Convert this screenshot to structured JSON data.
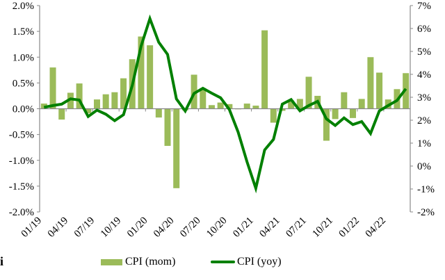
{
  "chart_data": {
    "type": "bar+line",
    "categories": [
      "01/19",
      "02/19",
      "03/19",
      "04/19",
      "05/19",
      "06/19",
      "07/19",
      "08/19",
      "09/19",
      "10/19",
      "11/19",
      "12/19",
      "01/20",
      "02/20",
      "03/20",
      "04/20",
      "05/20",
      "06/20",
      "07/20",
      "08/20",
      "09/20",
      "10/20",
      "11/20",
      "12/20",
      "01/21",
      "02/21",
      "03/21",
      "04/21",
      "05/21",
      "06/21",
      "07/21",
      "08/21",
      "09/21",
      "10/21",
      "11/21",
      "12/21",
      "01/22",
      "02/22",
      "03/22",
      "04/22",
      "05/22",
      "06/22"
    ],
    "x_tick_labels": [
      "01/19",
      "04/19",
      "07/19",
      "10/19",
      "01/20",
      "04/20",
      "07/20",
      "10/20",
      "01/21",
      "04/21",
      "07/21",
      "10/21",
      "01/22",
      "04/22"
    ],
    "series": [
      {
        "name": "CPI (mom)",
        "type": "bar",
        "axis": "left",
        "color": "#9bbb59",
        "values": [
          0.1,
          0.8,
          -0.21,
          0.31,
          0.49,
          -0.09,
          0.18,
          0.28,
          0.32,
          0.59,
          0.96,
          1.4,
          1.23,
          -0.17,
          -0.72,
          -1.54,
          -0.03,
          0.66,
          0.4,
          0.07,
          0.12,
          0.09,
          -0.01,
          0.1,
          0.06,
          1.52,
          -0.27,
          -0.04,
          0.16,
          0.19,
          0.62,
          0.25,
          -0.62,
          -0.2,
          0.32,
          -0.18,
          0.19,
          1.0,
          0.7,
          0.18,
          0.38,
          0.69
        ]
      },
      {
        "name": "CPI (yoy)",
        "type": "line",
        "axis": "right",
        "color": "#008000",
        "values": [
          2.56,
          2.64,
          2.7,
          2.93,
          2.88,
          2.16,
          2.44,
          2.26,
          1.98,
          2.24,
          3.52,
          5.23,
          6.43,
          5.4,
          4.87,
          2.93,
          2.4,
          3.17,
          3.39,
          3.18,
          2.98,
          2.47,
          1.48,
          0.19,
          -0.97,
          0.7,
          1.16,
          2.7,
          2.9,
          2.41,
          2.64,
          2.82,
          2.06,
          1.77,
          2.1,
          1.81,
          1.94,
          1.42,
          2.41,
          2.64,
          2.86,
          3.37
        ]
      }
    ],
    "left_axis": {
      "min": -2.0,
      "max": 2.0,
      "step": 0.5,
      "tick_labels": [
        "2.0%",
        "1.5%",
        "1.0%",
        "0.5%",
        "0.0%",
        "-0.5%",
        "-1.0%",
        "-1.5%",
        "-2.0%"
      ]
    },
    "right_axis": {
      "min": -2,
      "max": 7,
      "step": 1,
      "tick_labels": [
        "7%",
        "6%",
        "5%",
        "4%",
        "3%",
        "2%",
        "1%",
        "0%",
        "-1%",
        "-2%"
      ]
    },
    "grid": false,
    "legend_position": "bottom"
  },
  "stray_text": "i"
}
